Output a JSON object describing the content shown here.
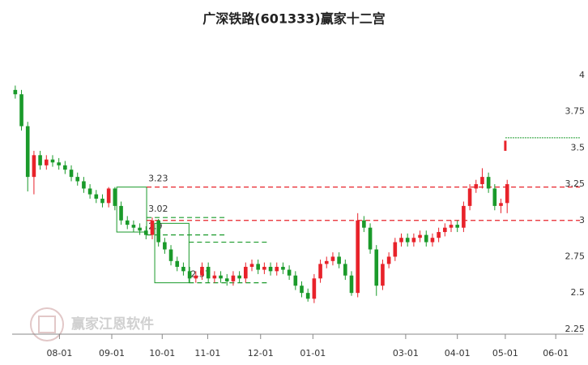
{
  "chart_data": {
    "type": "candlestick",
    "title": "广深铁路(601333)赢家十二宫",
    "watermark": "赢家江恩软件",
    "up_color": "#e8222a",
    "down_color": "#1a9a2a",
    "open": [
      3.9,
      3.87,
      3.65,
      3.3,
      3.45,
      3.38,
      3.42,
      3.4,
      3.38,
      3.35,
      3.3,
      3.27,
      3.22,
      3.18,
      3.15,
      3.12,
      3.22,
      3.1,
      3.0,
      2.97,
      2.95,
      2.93,
      2.9,
      3.0,
      2.85,
      2.8,
      2.72,
      2.68,
      2.65,
      2.6,
      2.62,
      2.68,
      2.6,
      2.62,
      2.6,
      2.58,
      2.62,
      2.6,
      2.68,
      2.7,
      2.66,
      2.68,
      2.65,
      2.68,
      2.66,
      2.62,
      2.55,
      2.5,
      2.46,
      2.6,
      2.7,
      2.72,
      2.75,
      2.7,
      2.62,
      2.5,
      3.0,
      2.95,
      2.8,
      2.55,
      2.7,
      2.75,
      2.85,
      2.88,
      2.85,
      2.88,
      2.9,
      2.85,
      2.88,
      2.92,
      2.95,
      2.97,
      2.95,
      3.1,
      3.22,
      3.25,
      3.3,
      3.22,
      3.1,
      3.12
    ],
    "high": [
      3.93,
      3.9,
      3.68,
      3.48,
      3.48,
      3.45,
      3.45,
      3.43,
      3.41,
      3.38,
      3.33,
      3.3,
      3.25,
      3.21,
      3.18,
      3.23,
      3.23,
      3.13,
      3.03,
      3.0,
      2.98,
      2.96,
      3.02,
      3.01,
      2.88,
      2.83,
      2.75,
      2.71,
      2.68,
      2.65,
      2.71,
      2.71,
      2.65,
      2.65,
      2.63,
      2.65,
      2.65,
      2.71,
      2.73,
      2.73,
      2.71,
      2.71,
      2.71,
      2.71,
      2.69,
      2.65,
      2.58,
      2.53,
      2.63,
      2.73,
      2.75,
      2.78,
      2.78,
      2.73,
      2.65,
      3.05,
      3.03,
      2.98,
      2.83,
      2.73,
      2.78,
      2.88,
      2.91,
      2.91,
      2.91,
      2.93,
      2.93,
      2.91,
      2.95,
      2.98,
      3.0,
      3.0,
      3.13,
      3.25,
      3.28,
      3.36,
      3.33,
      3.25,
      3.15,
      3.28
    ],
    "low": [
      3.84,
      3.62,
      3.2,
      3.18,
      3.35,
      3.35,
      3.37,
      3.35,
      3.32,
      3.27,
      3.24,
      3.19,
      3.15,
      3.12,
      3.09,
      3.09,
      3.07,
      2.97,
      2.94,
      2.92,
      2.9,
      2.87,
      2.87,
      2.82,
      2.77,
      2.69,
      2.65,
      2.62,
      2.57,
      2.57,
      2.59,
      2.57,
      2.57,
      2.57,
      2.55,
      2.55,
      2.57,
      2.57,
      2.65,
      2.63,
      2.63,
      2.62,
      2.62,
      2.63,
      2.59,
      2.52,
      2.47,
      2.44,
      2.43,
      2.57,
      2.67,
      2.69,
      2.67,
      2.59,
      2.48,
      2.47,
      2.92,
      2.77,
      2.48,
      2.52,
      2.67,
      2.72,
      2.82,
      2.82,
      2.82,
      2.85,
      2.82,
      2.82,
      2.85,
      2.89,
      2.92,
      2.92,
      2.92,
      3.07,
      3.19,
      3.22,
      3.19,
      3.07,
      3.05,
      3.05
    ],
    "close": [
      3.87,
      3.65,
      3.3,
      3.45,
      3.38,
      3.42,
      3.4,
      3.38,
      3.35,
      3.3,
      3.27,
      3.22,
      3.18,
      3.15,
      3.12,
      3.22,
      3.1,
      3.0,
      2.97,
      2.95,
      2.93,
      2.9,
      3.0,
      2.85,
      2.8,
      2.72,
      2.68,
      2.65,
      2.6,
      2.62,
      2.68,
      2.6,
      2.62,
      2.6,
      2.58,
      2.62,
      2.6,
      2.68,
      2.7,
      2.66,
      2.68,
      2.65,
      2.68,
      2.66,
      2.62,
      2.55,
      2.5,
      2.46,
      2.6,
      2.7,
      2.72,
      2.75,
      2.7,
      2.62,
      2.5,
      3.0,
      2.95,
      2.8,
      2.55,
      2.7,
      2.75,
      2.85,
      2.88,
      2.85,
      2.88,
      2.9,
      2.85,
      2.88,
      2.92,
      2.95,
      2.97,
      2.95,
      3.1,
      3.22,
      3.25,
      3.3,
      3.22,
      3.1,
      3.12,
      3.25
    ],
    "xlim": [
      0,
      91.7
    ],
    "xticks": [
      {
        "value": 7.6,
        "label": "08-01"
      },
      {
        "value": 16.0,
        "label": "09-01"
      },
      {
        "value": 24.1,
        "label": "10-01"
      },
      {
        "value": 31.4,
        "label": "11-01"
      },
      {
        "value": 39.9,
        "label": "12-01"
      },
      {
        "value": 48.3,
        "label": "01-01"
      },
      {
        "value": 63.2,
        "label": "03-01"
      },
      {
        "value": 71.5,
        "label": "04-01"
      },
      {
        "value": 79.2,
        "label": "05-01"
      },
      {
        "value": 87.3,
        "label": "06-01"
      }
    ],
    "ylim": [
      2.21,
      4.1
    ],
    "yticks": [
      2.25,
      2.5,
      2.75,
      3,
      3.25,
      3.5,
      3.75,
      4
    ],
    "levels": [
      {
        "value": 3.23,
        "color": "#e8222a",
        "start": 21.6,
        "end": 91.2,
        "labelled": true
      },
      {
        "value": 3.0,
        "color": "#e8222a",
        "start": 21.6,
        "end": 91.2,
        "labelled": false
      },
      {
        "value": 3.02,
        "color": "#1a9a2a",
        "start": 21.6,
        "end": 34.6,
        "labelled": true
      },
      {
        "value": 2.9,
        "color": "#1a9a2a",
        "start": 21.6,
        "end": 34.6,
        "labelled": true
      },
      {
        "value": 2.85,
        "color": "#1a9a2a",
        "start": 28.4,
        "end": 41.1,
        "labelled": false
      },
      {
        "value": 2.57,
        "color": "#1a9a2a",
        "start": 28.4,
        "end": 41.1,
        "labelled": true
      }
    ],
    "boxes": [
      {
        "x0": 16.8,
        "x1": 21.6,
        "low": 2.92,
        "high": 3.23
      },
      {
        "x0": 22.9,
        "x1": 28.4,
        "low": 2.57,
        "high": 2.98
      }
    ],
    "target": {
      "value": 3.57,
      "low": 3.48,
      "high": 3.55,
      "start": 79.2,
      "end": 91.2
    }
  }
}
